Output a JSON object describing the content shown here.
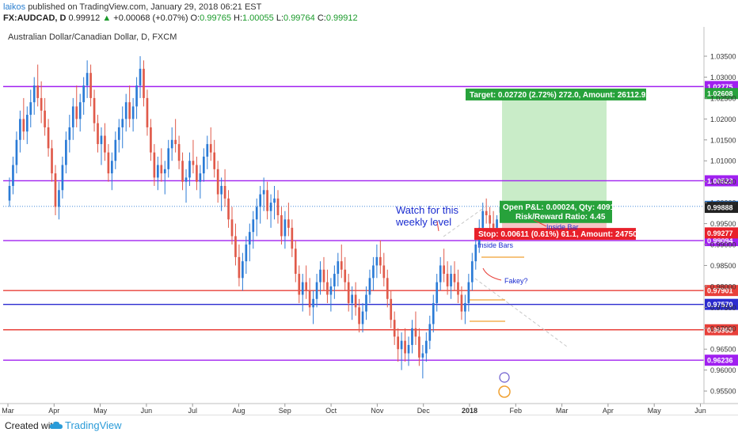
{
  "header": {
    "user": "laikos",
    "published_text": "published on TradingView.com, January 29, 2018 06:21 EST",
    "symbol": "FX:AUDCAD, D",
    "last": "0.99912",
    "change_arrow": "▲",
    "change": "+0.00068 (+0.07%)",
    "o_label": "O:",
    "o": "0.99765",
    "h_label": "H:",
    "h": "1.00055",
    "l_label": "L:",
    "l": "0.99764",
    "c_label": "C:",
    "c": "0.99912"
  },
  "footer": {
    "created_with": "Created with",
    "brand": "TradingView"
  },
  "colors": {
    "up": "#2b7bd6",
    "down": "#e05a4a",
    "purple": "#a020f0",
    "red": "#e8403a",
    "blue": "#2b2bd0",
    "green_box": "#c9ecc8",
    "red_box": "#f6c6c6",
    "target_bg": "#27a23b",
    "stop_bg": "#e8202a"
  },
  "chart_data": {
    "type": "candlestick",
    "title": "Australian Dollar/Canadian Dollar, D, FXCM",
    "ylim": [
      0.952,
      1.042
    ],
    "y_ticks": [
      0.955,
      0.96,
      0.965,
      0.97,
      0.975,
      0.98,
      0.985,
      0.99,
      0.995,
      1.0,
      1.005,
      1.01,
      1.015,
      1.02,
      1.025,
      1.03,
      1.035
    ],
    "y_tick_labels": [
      "0.95500",
      "0.96000",
      "0.96500",
      "0.97000",
      "0.97500",
      "0.98000",
      "0.98500",
      "0.99000",
      "0.99500",
      "1.00000",
      "1.00500",
      "1.01000",
      "1.01500",
      "1.02000",
      "1.02500",
      "1.03000",
      "1.03500"
    ],
    "x_labels": [
      "Mar",
      "Apr",
      "May",
      "Jun",
      "Jul",
      "Aug",
      "Sep",
      "Oct",
      "Nov",
      "Dec",
      "2018",
      "Feb",
      "Mar",
      "Apr",
      "May",
      "Jun"
    ],
    "horizontal_levels": [
      {
        "value": 1.02775,
        "label": "1.02775",
        "color": "purple"
      },
      {
        "value": 1.00523,
        "label": "1.00523",
        "color": "purple"
      },
      {
        "value": 0.99094,
        "label": "0.99094",
        "color": "purple"
      },
      {
        "value": 0.97901,
        "label": "0.97901",
        "color": "red"
      },
      {
        "value": 0.9757,
        "label": "0.97570",
        "color": "blue"
      },
      {
        "value": 0.96963,
        "label": "0.96963",
        "color": "red"
      },
      {
        "value": 0.96236,
        "label": "0.96236",
        "color": "purple"
      }
    ],
    "price_badges": [
      {
        "value": 1.02608,
        "label": "1.02608",
        "color": "target_bg"
      },
      {
        "value": 0.99912,
        "label": "0.99912",
        "color": "up"
      },
      {
        "value": 0.99888,
        "label": "0.99888",
        "color": "dark"
      },
      {
        "value": 0.99277,
        "label": "0.99277",
        "color": "stop_bg"
      }
    ],
    "position": {
      "entry": 0.99912,
      "target": 1.02632,
      "stop": 0.99301,
      "target_label": "Target: 0.02720 (2.72%) 272.0, Amount: 26112.92",
      "stop_label": "Stop: 0.00611 (0.61%) 61.1, Amount: 24750",
      "pnl_label": "Open P&L: 0.00024, Qty: 40916",
      "rr_label": "Risk/Reward Ratio: 4.45"
    },
    "annotations": {
      "watch": [
        "Watch for this",
        "weekly level"
      ],
      "inside_bar": "Inside Bar",
      "inside_bars": "Inside Bars",
      "fakey": "Fakey?"
    },
    "candles": [
      [
        1.0005,
        1.006,
        0.999,
        1.004
      ],
      [
        1.004,
        1.011,
        1.002,
        1.009
      ],
      [
        1.009,
        1.017,
        1.007,
        1.015
      ],
      [
        1.015,
        1.022,
        1.012,
        1.02
      ],
      [
        1.02,
        1.025,
        1.015,
        1.017
      ],
      [
        1.017,
        1.023,
        1.014,
        1.021
      ],
      [
        1.021,
        1.027,
        1.018,
        1.024
      ],
      [
        1.024,
        1.03,
        1.021,
        1.028
      ],
      [
        1.028,
        1.033,
        1.023,
        1.025
      ],
      [
        1.025,
        1.029,
        1.019,
        1.022
      ],
      [
        1.022,
        1.025,
        1.016,
        1.018
      ],
      [
        1.018,
        1.02,
        1.011,
        1.013
      ],
      [
        1.013,
        1.015,
        1.005,
        1.007
      ],
      [
        1.007,
        1.009,
        0.997,
        0.999
      ],
      [
        0.999,
        1.005,
        0.996,
        1.003
      ],
      [
        1.003,
        1.011,
        1.001,
        1.009
      ],
      [
        1.009,
        1.017,
        1.007,
        1.015
      ],
      [
        1.015,
        1.021,
        1.012,
        1.018
      ],
      [
        1.018,
        1.025,
        1.015,
        1.023
      ],
      [
        1.023,
        1.028,
        1.018,
        1.02
      ],
      [
        1.02,
        1.026,
        1.017,
        1.024
      ],
      [
        1.024,
        1.03,
        1.021,
        1.028
      ],
      [
        1.028,
        1.034,
        1.025,
        1.031
      ],
      [
        1.031,
        1.033,
        1.023,
        1.025
      ],
      [
        1.025,
        1.027,
        1.017,
        1.019
      ],
      [
        1.019,
        1.021,
        1.012,
        1.014
      ],
      [
        1.014,
        1.018,
        1.009,
        1.016
      ],
      [
        1.016,
        1.019,
        1.01,
        1.012
      ],
      [
        1.012,
        1.014,
        1.005,
        1.007
      ],
      [
        1.007,
        1.012,
        1.003,
        1.01
      ],
      [
        1.01,
        1.017,
        1.008,
        1.015
      ],
      [
        1.015,
        1.02,
        1.012,
        1.018
      ],
      [
        1.018,
        1.023,
        1.013,
        1.02
      ],
      [
        1.02,
        1.026,
        1.017,
        1.024
      ],
      [
        1.024,
        1.028,
        1.018,
        1.02
      ],
      [
        1.02,
        1.025,
        1.017,
        1.023
      ],
      [
        1.023,
        1.03,
        1.02,
        1.028
      ],
      [
        1.028,
        1.035,
        1.025,
        1.032
      ],
      [
        1.032,
        1.034,
        1.023,
        1.025
      ],
      [
        1.025,
        1.027,
        1.016,
        1.018
      ],
      [
        1.018,
        1.02,
        1.01,
        1.012
      ],
      [
        1.012,
        1.014,
        1.004,
        1.006
      ],
      [
        1.006,
        1.011,
        1.003,
        1.009
      ],
      [
        1.009,
        1.013,
        1.005,
        1.007
      ],
      [
        1.007,
        1.01,
        1.002,
        1.008
      ],
      [
        1.008,
        1.015,
        1.006,
        1.013
      ],
      [
        1.013,
        1.018,
        1.01,
        1.015
      ],
      [
        1.015,
        1.02,
        1.012,
        1.014
      ],
      [
        1.014,
        1.016,
        1.008,
        1.01
      ],
      [
        1.01,
        1.012,
        1.003,
        1.005
      ],
      [
        1.005,
        1.008,
        1.0,
        1.006
      ],
      [
        1.006,
        1.012,
        1.004,
        1.01
      ],
      [
        1.01,
        1.015,
        1.007,
        1.009
      ],
      [
        1.009,
        1.011,
        1.003,
        1.005
      ],
      [
        1.005,
        1.009,
        1.001,
        1.007
      ],
      [
        1.007,
        1.013,
        1.005,
        1.011
      ],
      [
        1.011,
        1.016,
        1.008,
        1.014
      ],
      [
        1.014,
        1.018,
        1.01,
        1.012
      ],
      [
        1.012,
        1.015,
        1.006,
        1.008
      ],
      [
        1.008,
        1.01,
        1.0,
        1.002
      ],
      [
        1.002,
        1.006,
        0.998,
        1.004
      ],
      [
        1.004,
        1.008,
        0.999,
        1.001
      ],
      [
        1.001,
        1.003,
        0.994,
        0.996
      ],
      [
        0.996,
        0.999,
        0.99,
        0.992
      ],
      [
        0.992,
        0.995,
        0.985,
        0.987
      ],
      [
        0.987,
        0.99,
        0.98,
        0.982
      ],
      [
        0.982,
        0.988,
        0.979,
        0.986
      ],
      [
        0.986,
        0.992,
        0.983,
        0.99
      ],
      [
        0.99,
        0.995,
        0.986,
        0.993
      ],
      [
        0.993,
        0.998,
        0.989,
        0.996
      ],
      [
        0.996,
        1.001,
        0.992,
        0.999
      ],
      [
        0.999,
        1.004,
        0.995,
        1.002
      ],
      [
        1.002,
        1.006,
        0.998,
        1.003
      ],
      [
        1.003,
        1.005,
        0.996,
        0.998
      ],
      [
        0.998,
        1.002,
        0.994,
        1.0
      ],
      [
        1.0,
        1.004,
        0.996,
        1.001
      ],
      [
        1.001,
        1.003,
        0.995,
        0.997
      ],
      [
        0.997,
        0.999,
        0.99,
        0.992
      ],
      [
        0.992,
        0.998,
        0.989,
        0.996
      ],
      [
        0.996,
        1.0,
        0.992,
        0.994
      ],
      [
        0.994,
        0.996,
        0.987,
        0.989
      ],
      [
        0.989,
        0.991,
        0.981,
        0.983
      ],
      [
        0.983,
        0.985,
        0.976,
        0.978
      ],
      [
        0.978,
        0.983,
        0.974,
        0.981
      ],
      [
        0.981,
        0.985,
        0.977,
        0.979
      ],
      [
        0.979,
        0.982,
        0.973,
        0.975
      ],
      [
        0.975,
        0.979,
        0.971,
        0.977
      ],
      [
        0.977,
        0.983,
        0.975,
        0.981
      ],
      [
        0.981,
        0.986,
        0.978,
        0.984
      ],
      [
        0.984,
        0.987,
        0.979,
        0.981
      ],
      [
        0.981,
        0.984,
        0.976,
        0.978
      ],
      [
        0.978,
        0.982,
        0.974,
        0.98
      ],
      [
        0.98,
        0.985,
        0.977,
        0.983
      ],
      [
        0.983,
        0.988,
        0.98,
        0.986
      ],
      [
        0.986,
        0.99,
        0.982,
        0.984
      ],
      [
        0.984,
        0.987,
        0.979,
        0.981
      ],
      [
        0.981,
        0.983,
        0.974,
        0.976
      ],
      [
        0.976,
        0.98,
        0.972,
        0.978
      ],
      [
        0.978,
        0.981,
        0.973,
        0.975
      ],
      [
        0.975,
        0.977,
        0.969,
        0.971
      ],
      [
        0.971,
        0.976,
        0.969,
        0.974
      ],
      [
        0.974,
        0.98,
        0.972,
        0.978
      ],
      [
        0.978,
        0.984,
        0.976,
        0.982
      ],
      [
        0.982,
        0.987,
        0.979,
        0.985
      ],
      [
        0.985,
        0.99,
        0.982,
        0.987
      ],
      [
        0.987,
        0.991,
        0.983,
        0.985
      ],
      [
        0.985,
        0.988,
        0.98,
        0.982
      ],
      [
        0.982,
        0.984,
        0.975,
        0.977
      ],
      [
        0.977,
        0.979,
        0.97,
        0.972
      ],
      [
        0.972,
        0.974,
        0.966,
        0.968
      ],
      [
        0.968,
        0.97,
        0.962,
        0.965
      ],
      [
        0.965,
        0.969,
        0.96,
        0.967
      ],
      [
        0.967,
        0.97,
        0.962,
        0.964
      ],
      [
        0.964,
        0.968,
        0.961,
        0.966
      ],
      [
        0.966,
        0.972,
        0.964,
        0.97
      ],
      [
        0.97,
        0.974,
        0.966,
        0.968
      ],
      [
        0.968,
        0.97,
        0.961,
        0.963
      ],
      [
        0.963,
        0.966,
        0.958,
        0.964
      ],
      [
        0.964,
        0.969,
        0.962,
        0.967
      ],
      [
        0.967,
        0.973,
        0.965,
        0.971
      ],
      [
        0.971,
        0.978,
        0.969,
        0.976
      ],
      [
        0.976,
        0.983,
        0.974,
        0.981
      ],
      [
        0.981,
        0.987,
        0.979,
        0.985
      ],
      [
        0.985,
        0.989,
        0.981,
        0.983
      ],
      [
        0.983,
        0.986,
        0.978,
        0.98
      ],
      [
        0.98,
        0.985,
        0.977,
        0.983
      ],
      [
        0.983,
        0.986,
        0.979,
        0.981
      ],
      [
        0.981,
        0.984,
        0.976,
        0.978
      ],
      [
        0.978,
        0.98,
        0.972,
        0.974
      ],
      [
        0.974,
        0.978,
        0.971,
        0.976
      ],
      [
        0.976,
        0.983,
        0.974,
        0.981
      ],
      [
        0.981,
        0.988,
        0.979,
        0.986
      ],
      [
        0.986,
        0.992,
        0.984,
        0.99
      ],
      [
        0.99,
        0.996,
        0.988,
        0.994
      ],
      [
        0.994,
        1.0,
        0.992,
        0.998
      ],
      [
        0.998,
        1.001,
        0.995,
        0.997
      ],
      [
        0.997,
        0.999,
        0.993,
        0.995
      ],
      [
        0.995,
        0.998,
        0.992,
        0.994
      ],
      [
        0.994,
        0.997,
        0.991,
        0.996
      ],
      [
        0.9976,
        1.0005,
        0.9976,
        0.9991
      ]
    ]
  }
}
